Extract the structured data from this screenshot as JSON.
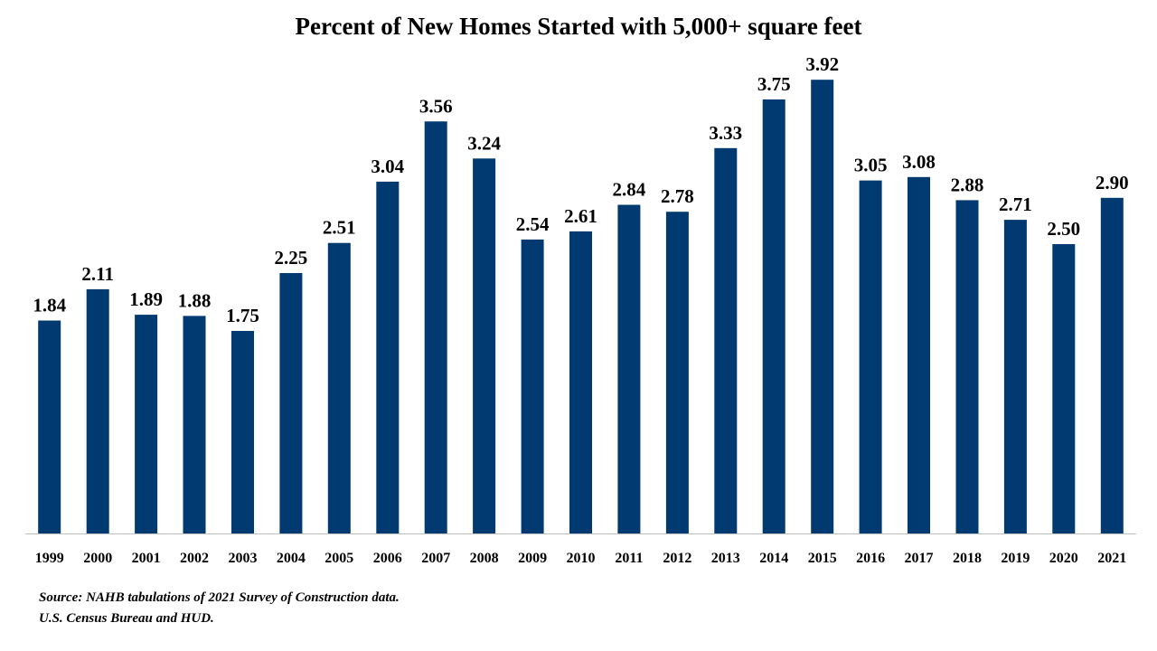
{
  "chart_data": {
    "type": "bar",
    "title": "Percent of New Homes Started with 5,000+ square feet",
    "xlabel": "",
    "ylabel": "",
    "categories": [
      "1999",
      "2000",
      "2001",
      "2002",
      "2003",
      "2004",
      "2005",
      "2006",
      "2007",
      "2008",
      "2009",
      "2010",
      "2011",
      "2012",
      "2013",
      "2014",
      "2015",
      "2016",
      "2017",
      "2018",
      "2019",
      "2020",
      "2021"
    ],
    "values": [
      1.84,
      2.11,
      1.89,
      1.88,
      1.75,
      2.25,
      2.51,
      3.04,
      3.56,
      3.24,
      2.54,
      2.61,
      2.84,
      2.78,
      3.33,
      3.75,
      3.92,
      3.05,
      3.08,
      2.88,
      2.71,
      2.5,
      2.9
    ],
    "value_labels": [
      "1.84",
      "2.11",
      "1.89",
      "1.88",
      "1.75",
      "2.25",
      "2.51",
      "3.04",
      "3.56",
      "3.24",
      "2.54",
      "2.61",
      "2.84",
      "2.78",
      "3.33",
      "3.75",
      "3.92",
      "3.05",
      "3.08",
      "2.88",
      "2.71",
      "2.50",
      "2.90"
    ],
    "ylim": [
      0,
      4.0
    ],
    "grid": false,
    "legend": "none",
    "bar_color": "#003A70",
    "axis_color": "#BFBFBF"
  },
  "source": {
    "line1": "Source: NAHB tabulations of 2021 Survey of Construction data.",
    "line2": "U.S. Census Bureau and HUD."
  }
}
